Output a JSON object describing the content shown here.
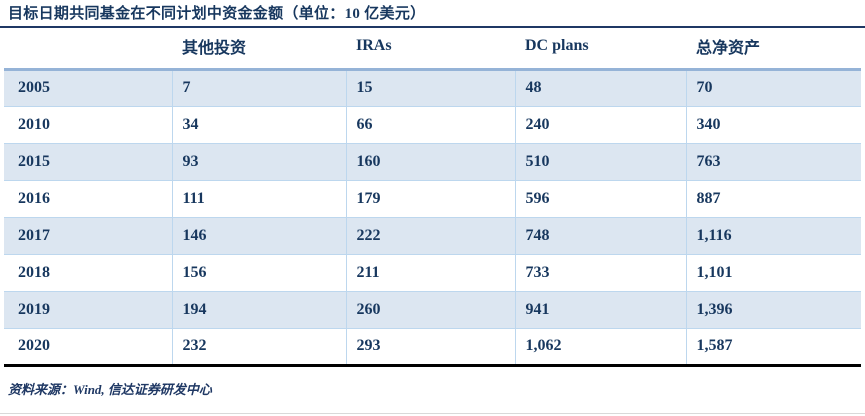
{
  "title": "目标日期共同基金在不同计划中资金金额（单位：10 亿美元）",
  "source_note": "资料来源：Wind, 信达证券研发中心",
  "colors": {
    "text_navy": "#17375e",
    "row_alt_bg": "#dce6f1",
    "row_border": "#bdd7ee",
    "header_separator": "#95b3d7",
    "title_rule": "#1f3864",
    "table_bottom_border": "#000000",
    "bottom_hairline": "#d9d9d9"
  },
  "table": {
    "columns": [
      "其他投资",
      "IRAs",
      "DC plans",
      "总净资产"
    ],
    "rows": [
      {
        "year": "2005",
        "other": "7",
        "iras": "15",
        "dc": "48",
        "total": "70"
      },
      {
        "year": "2010",
        "other": "34",
        "iras": "66",
        "dc": "240",
        "total": "340"
      },
      {
        "year": "2015",
        "other": "93",
        "iras": "160",
        "dc": "510",
        "total": "763"
      },
      {
        "year": "2016",
        "other": "111",
        "iras": "179",
        "dc": "596",
        "total": "887"
      },
      {
        "year": "2017",
        "other": "146",
        "iras": "222",
        "dc": "748",
        "total": "1,116"
      },
      {
        "year": "2018",
        "other": "156",
        "iras": "211",
        "dc": "733",
        "total": "1,101"
      },
      {
        "year": "2019",
        "other": "194",
        "iras": "260",
        "dc": "941",
        "total": "1,396"
      },
      {
        "year": "2020",
        "other": "232",
        "iras": "293",
        "dc": "1,062",
        "total": "1,587"
      }
    ]
  },
  "chart_data": {
    "type": "table",
    "title": "目标日期共同基金在不同计划中资金金额（单位：10 亿美元）",
    "categories": [
      "2005",
      "2010",
      "2015",
      "2016",
      "2017",
      "2018",
      "2019",
      "2020"
    ],
    "series": [
      {
        "name": "其他投资",
        "values": [
          7,
          34,
          93,
          111,
          146,
          156,
          194,
          232
        ]
      },
      {
        "name": "IRAs",
        "values": [
          15,
          66,
          160,
          179,
          222,
          211,
          260,
          293
        ]
      },
      {
        "name": "DC plans",
        "values": [
          48,
          240,
          510,
          596,
          748,
          733,
          941,
          1062
        ]
      },
      {
        "name": "总净资产",
        "values": [
          70,
          340,
          763,
          887,
          1116,
          1101,
          1396,
          1587
        ]
      }
    ],
    "unit": "10 亿美元",
    "source": "资料来源：Wind, 信达证券研发中心"
  }
}
